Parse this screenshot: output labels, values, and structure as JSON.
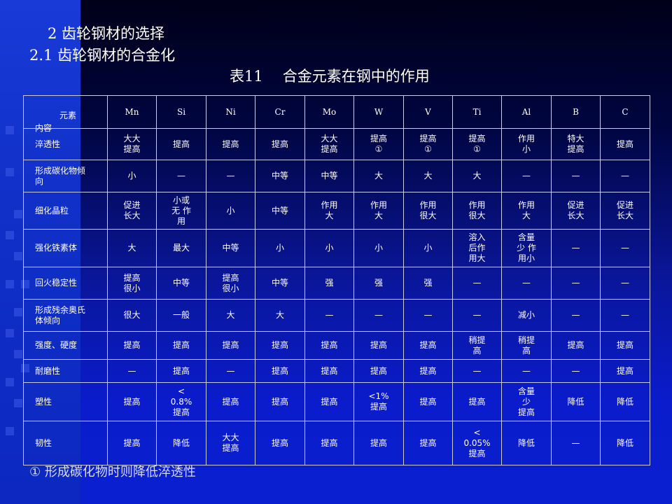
{
  "heading": "2  齿轮钢材的选择",
  "subheading": "2.1  齿轮钢材的合金化",
  "caption": {
    "number": "表11",
    "text": "合金元素在钢中的作用"
  },
  "table": {
    "corner_top": "元素",
    "corner_bottom": "内容",
    "columns": [
      "Mn",
      "Si",
      "Ni",
      "Cr",
      "Mo",
      "W",
      "V",
      "Ti",
      "Al",
      "B",
      "C"
    ],
    "rows": [
      {
        "label": "淬透性",
        "cells": [
          "大大\n提高",
          "提高",
          "提高",
          "提高",
          "大大\n提高",
          "提高\n①",
          "提高\n①",
          "提高\n①",
          "作用\n小",
          "特大\n提高",
          "提高"
        ]
      },
      {
        "label": "形成碳化物倾\n向",
        "cells": [
          "小",
          "—",
          "—",
          "中等",
          "中等",
          "大",
          "大",
          "大",
          "—",
          "—",
          "—"
        ]
      },
      {
        "label": "细化晶粒",
        "cells": [
          "促进\n长大",
          "小或\n无 作\n用",
          "小",
          "中等",
          "作用\n大",
          "作用\n大",
          "作用\n很大",
          "作用\n很大",
          "作用\n大",
          "促进\n长大",
          "促进\n长大"
        ]
      },
      {
        "label": "强化铁素体",
        "cells": [
          "大",
          "最大",
          "中等",
          "小",
          "小",
          "小",
          "小",
          "溶入\n后作\n用大",
          "含量\n少 作\n用小",
          "—",
          "—"
        ]
      },
      {
        "label": "回火稳定性",
        "cells": [
          "提高\n很小",
          "中等",
          "提高\n很小",
          "中等",
          "强",
          "强",
          "强",
          "—",
          "—",
          "—",
          "—"
        ]
      },
      {
        "label": "形成残余奥氏\n体倾向",
        "cells": [
          "很大",
          "一般",
          "大",
          "大",
          "—",
          "—",
          "—",
          "—",
          "减小",
          "—",
          "—"
        ]
      },
      {
        "label": "强度、硬度",
        "cells": [
          "提高",
          "提高",
          "提高",
          "提高",
          "提高",
          "提高",
          "提高",
          "稍提\n高",
          "稍提\n高",
          "提高",
          "提高"
        ]
      },
      {
        "label": "耐磨性",
        "cells": [
          "—",
          "提高",
          "—",
          "提高",
          "提高",
          "提高",
          "提高",
          "—",
          "—",
          "—",
          "提高"
        ]
      },
      {
        "label": "塑性",
        "cells": [
          "提高",
          "<\n0.8%\n提高",
          "提高",
          "提高",
          "提高",
          "<1%\n提高",
          "提高",
          "提高",
          "含量\n少\n提高",
          "降低",
          "降低"
        ]
      },
      {
        "label": "韧性",
        "cells": [
          "提高",
          "降低",
          "大大\n提高",
          "提高",
          "提高",
          "提高",
          "提高",
          "<\n0.05%\n提高",
          "降低",
          "—",
          "降低"
        ]
      }
    ]
  },
  "footnote": "① 形成碳化物时则降低淬透性"
}
